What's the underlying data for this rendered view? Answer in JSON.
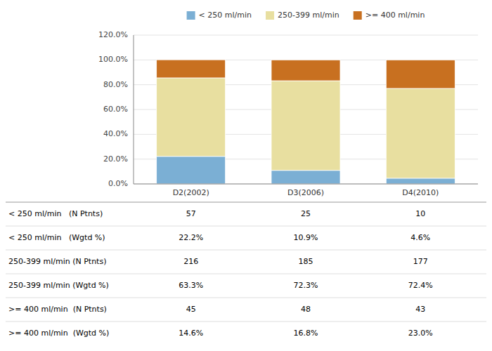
{
  "chart_data": {
    "type": "bar",
    "stacked": true,
    "grid": true,
    "legend": "top",
    "categories": [
      "D2(2002)",
      "D3(2006)",
      "D4(2010)"
    ],
    "series": [
      {
        "name": "< 250 ml/min",
        "color": "#7BAFD4",
        "values": [
          22.2,
          10.9,
          4.6
        ]
      },
      {
        "name": "250-399 ml/min",
        "color": "#E8DFA0",
        "values": [
          63.3,
          72.3,
          72.4
        ]
      },
      {
        "name": ">= 400 ml/min",
        "color": "#C87020",
        "values": [
          14.6,
          16.8,
          23.0
        ]
      }
    ],
    "ylim": [
      0,
      120
    ],
    "yticks": [
      {
        "value": 0,
        "label": "0.0%"
      },
      {
        "value": 20,
        "label": "20.0%"
      },
      {
        "value": 40,
        "label": "40.0%"
      },
      {
        "value": 60,
        "label": "60.0%"
      },
      {
        "value": 80,
        "label": "80.0%"
      },
      {
        "value": 100,
        "label": "100.0%"
      },
      {
        "value": 120,
        "label": "120.0%"
      }
    ],
    "table": {
      "row_labels": [
        "< 250 ml/min   (N Ptnts)",
        "< 250 ml/min   (Wgtd %)",
        "250-399 ml/min (N Ptnts)",
        "250-399 ml/min (Wgtd %)",
        ">= 400 ml/min  (N Ptnts)",
        ">= 400 ml/min  (Wgtd %)"
      ],
      "rows": [
        {
          "values": [
            57,
            25,
            10
          ]
        },
        {
          "values": [
            22.2,
            10.9,
            4.6
          ],
          "value_labels": [
            "22.2%",
            "10.9%",
            "4.6%"
          ]
        },
        {
          "values": [
            216,
            185,
            177
          ]
        },
        {
          "values": [
            63.3,
            72.3,
            72.4
          ],
          "value_labels": [
            "63.3%",
            "72.3%",
            "72.4%"
          ]
        },
        {
          "values": [
            45,
            48,
            43
          ]
        },
        {
          "values": [
            14.6,
            16.8,
            23.0
          ],
          "value_labels": [
            "14.6%",
            "16.8%",
            "23.0%"
          ]
        }
      ]
    }
  }
}
